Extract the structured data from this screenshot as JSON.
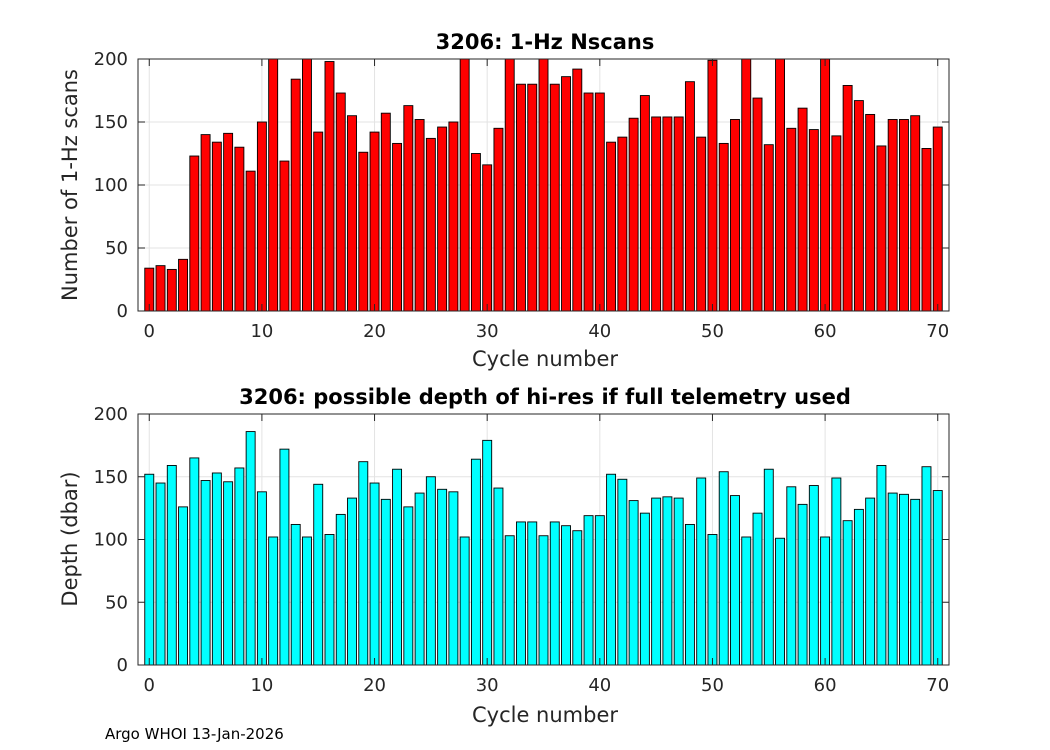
{
  "footer": "Argo WHOI 13-Jan-2026",
  "chart_data": [
    {
      "type": "bar",
      "title": "3206: 1-Hz Nscans",
      "xlabel": "Cycle number",
      "ylabel": "Number of 1-Hz scans",
      "color": "#ff0000",
      "xlim": [
        -1,
        71
      ],
      "ylim": [
        0,
        200
      ],
      "xticks": [
        0,
        10,
        20,
        30,
        40,
        50,
        60,
        70
      ],
      "yticks": [
        0,
        50,
        100,
        150,
        200
      ],
      "grid": true,
      "x": [
        0,
        1,
        2,
        3,
        4,
        5,
        6,
        7,
        8,
        9,
        10,
        11,
        12,
        13,
        14,
        15,
        16,
        17,
        18,
        19,
        20,
        21,
        22,
        23,
        24,
        25,
        26,
        27,
        28,
        29,
        30,
        31,
        32,
        33,
        34,
        35,
        36,
        37,
        38,
        39,
        40,
        41,
        42,
        43,
        44,
        45,
        46,
        47,
        48,
        49,
        50,
        51,
        52,
        53,
        54,
        55,
        56,
        57,
        58,
        59,
        60,
        61,
        62,
        63,
        64,
        65,
        66,
        67,
        68,
        69,
        70
      ],
      "values": [
        34,
        36,
        33,
        41,
        123,
        140,
        134,
        141,
        130,
        111,
        150,
        200,
        119,
        184,
        200,
        142,
        198,
        173,
        155,
        126,
        142,
        157,
        133,
        163,
        152,
        137,
        146,
        150,
        200,
        125,
        116,
        145,
        200,
        180,
        180,
        200,
        180,
        186,
        192,
        173,
        173,
        134,
        138,
        153,
        171,
        154,
        154,
        154,
        182,
        138,
        199,
        133,
        152,
        200,
        169,
        132,
        200,
        145,
        161,
        144,
        200,
        139,
        179,
        167,
        156,
        131,
        152,
        152,
        155,
        129,
        146
      ]
    },
    {
      "type": "bar",
      "title": "3206: possible depth of hi-res if full telemetry used",
      "xlabel": "Cycle number",
      "ylabel": "Depth (dbar)",
      "color": "#00ffff",
      "xlim": [
        -1,
        71
      ],
      "ylim": [
        0,
        200
      ],
      "xticks": [
        0,
        10,
        20,
        30,
        40,
        50,
        60,
        70
      ],
      "yticks": [
        0,
        50,
        100,
        150,
        200
      ],
      "grid": true,
      "x": [
        0,
        1,
        2,
        3,
        4,
        5,
        6,
        7,
        8,
        9,
        10,
        11,
        12,
        13,
        14,
        15,
        16,
        17,
        18,
        19,
        20,
        21,
        22,
        23,
        24,
        25,
        26,
        27,
        28,
        29,
        30,
        31,
        32,
        33,
        34,
        35,
        36,
        37,
        38,
        39,
        40,
        41,
        42,
        43,
        44,
        45,
        46,
        47,
        48,
        49,
        50,
        51,
        52,
        53,
        54,
        55,
        56,
        57,
        58,
        59,
        60,
        61,
        62,
        63,
        64,
        65,
        66,
        67,
        68,
        69,
        70
      ],
      "values": [
        152,
        145,
        159,
        126,
        165,
        147,
        153,
        146,
        157,
        186,
        138,
        102,
        172,
        112,
        102,
        144,
        104,
        120,
        133,
        162,
        145,
        132,
        156,
        126,
        137,
        150,
        140,
        138,
        102,
        164,
        179,
        141,
        103,
        114,
        114,
        103,
        114,
        111,
        107,
        119,
        119,
        152,
        148,
        131,
        121,
        133,
        134,
        133,
        112,
        149,
        104,
        154,
        135,
        102,
        121,
        156,
        101,
        142,
        128,
        143,
        102,
        149,
        115,
        124,
        133,
        159,
        137,
        136,
        132,
        158,
        139
      ]
    }
  ]
}
